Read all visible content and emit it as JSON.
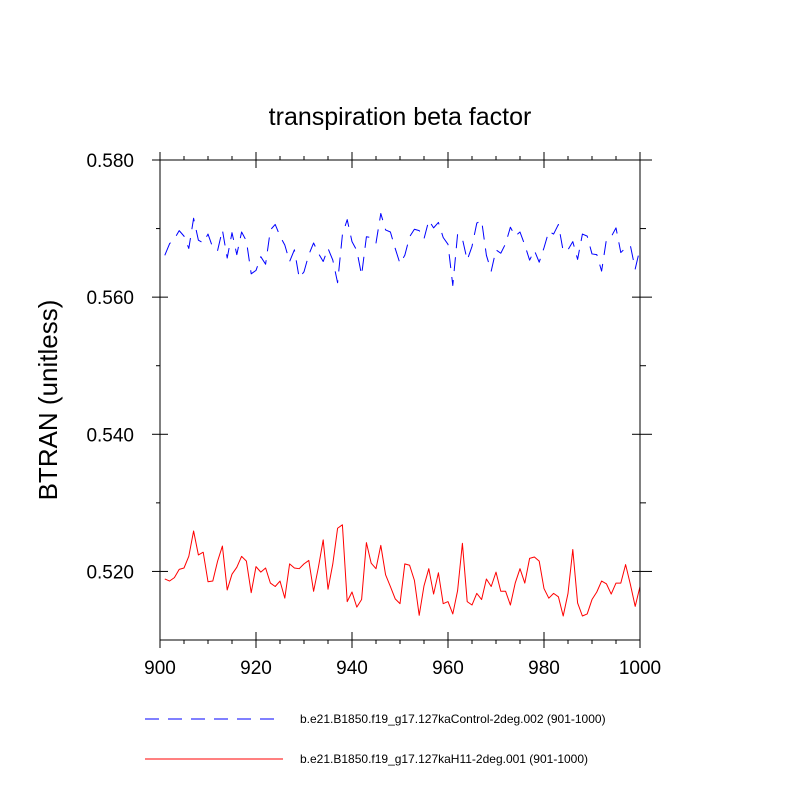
{
  "chart_data": {
    "type": "line",
    "title": "transpiration beta factor",
    "xlabel": "",
    "ylabel": "BTRAN  (unitless)",
    "xlim": [
      900,
      1000
    ],
    "ylim": [
      0.51,
      0.58
    ],
    "xticks": [
      900,
      920,
      940,
      960,
      980,
      1000
    ],
    "xtick_labels": [
      "900",
      "920",
      "940",
      "960",
      "980",
      "1000"
    ],
    "yticks": [
      0.52,
      0.54,
      0.56,
      0.58
    ],
    "ytick_labels": [
      "0.520",
      "0.540",
      "0.560",
      "0.580"
    ],
    "x_start": 901,
    "series": [
      {
        "name": "b.e21.B1850.f19_g17.127kaControl-2deg.002 (901-1000)",
        "color": "#0000ff",
        "dash": "dashed",
        "values": [
          0.5661,
          0.5678,
          0.5685,
          0.5697,
          0.5689,
          0.5671,
          0.5715,
          0.5683,
          0.5679,
          0.5692,
          0.5672,
          0.5668,
          0.5698,
          0.5657,
          0.5694,
          0.5662,
          0.5695,
          0.5682,
          0.5634,
          0.5639,
          0.5659,
          0.5648,
          0.5698,
          0.5706,
          0.5689,
          0.5676,
          0.5652,
          0.5669,
          0.5628,
          0.5637,
          0.5662,
          0.5679,
          0.5664,
          0.5652,
          0.5671,
          0.5654,
          0.5621,
          0.5691,
          0.5713,
          0.5681,
          0.5668,
          0.5632,
          0.5688,
          0.5687,
          0.5679,
          0.5722,
          0.5698,
          0.5695,
          0.5671,
          0.5649,
          0.5661,
          0.5688,
          0.5699,
          0.5697,
          0.5685,
          0.5712,
          0.5701,
          0.5709,
          0.5687,
          0.5677,
          0.5617,
          0.5692,
          0.5685,
          0.5654,
          0.5674,
          0.5708,
          0.5712,
          0.5661,
          0.5638,
          0.5669,
          0.5664,
          0.5678,
          0.5702,
          0.5689,
          0.5695,
          0.5676,
          0.5654,
          0.5668,
          0.5651,
          0.5672,
          0.5696,
          0.5692,
          0.5706,
          0.5667,
          0.5669,
          0.5681,
          0.5655,
          0.5692,
          0.5689,
          0.5663,
          0.5662,
          0.5638,
          0.5684,
          0.5688,
          0.5701,
          0.5665,
          0.5672,
          0.5675,
          0.5641,
          0.5671
        ]
      },
      {
        "name": "b.e21.B1850.f19_g17.127kaH11-2deg.001 (901-1000)",
        "color": "#ff0000",
        "dash": "solid",
        "values": [
          0.5189,
          0.5186,
          0.5191,
          0.5203,
          0.5205,
          0.5222,
          0.5259,
          0.5224,
          0.5228,
          0.5185,
          0.5186,
          0.5215,
          0.5237,
          0.5173,
          0.5196,
          0.5206,
          0.5222,
          0.5215,
          0.5169,
          0.5207,
          0.5199,
          0.5205,
          0.5183,
          0.5178,
          0.5186,
          0.5161,
          0.5211,
          0.5205,
          0.5204,
          0.5211,
          0.5216,
          0.5171,
          0.5206,
          0.5246,
          0.5174,
          0.5211,
          0.5263,
          0.5268,
          0.5156,
          0.517,
          0.5148,
          0.5159,
          0.5242,
          0.5212,
          0.5204,
          0.5238,
          0.5195,
          0.5178,
          0.516,
          0.5153,
          0.5211,
          0.5209,
          0.5187,
          0.5136,
          0.5179,
          0.5204,
          0.5167,
          0.5198,
          0.5153,
          0.5156,
          0.5138,
          0.5172,
          0.5241,
          0.5156,
          0.5151,
          0.5168,
          0.5159,
          0.5189,
          0.5178,
          0.5199,
          0.5171,
          0.5171,
          0.5151,
          0.5183,
          0.5204,
          0.5183,
          0.5219,
          0.5221,
          0.5215,
          0.5175,
          0.5161,
          0.5168,
          0.5163,
          0.5135,
          0.5168,
          0.5232,
          0.5154,
          0.5135,
          0.5138,
          0.5159,
          0.517,
          0.5186,
          0.5182,
          0.5167,
          0.5183,
          0.5183,
          0.521,
          0.5181,
          0.5149,
          0.5178
        ]
      }
    ]
  }
}
